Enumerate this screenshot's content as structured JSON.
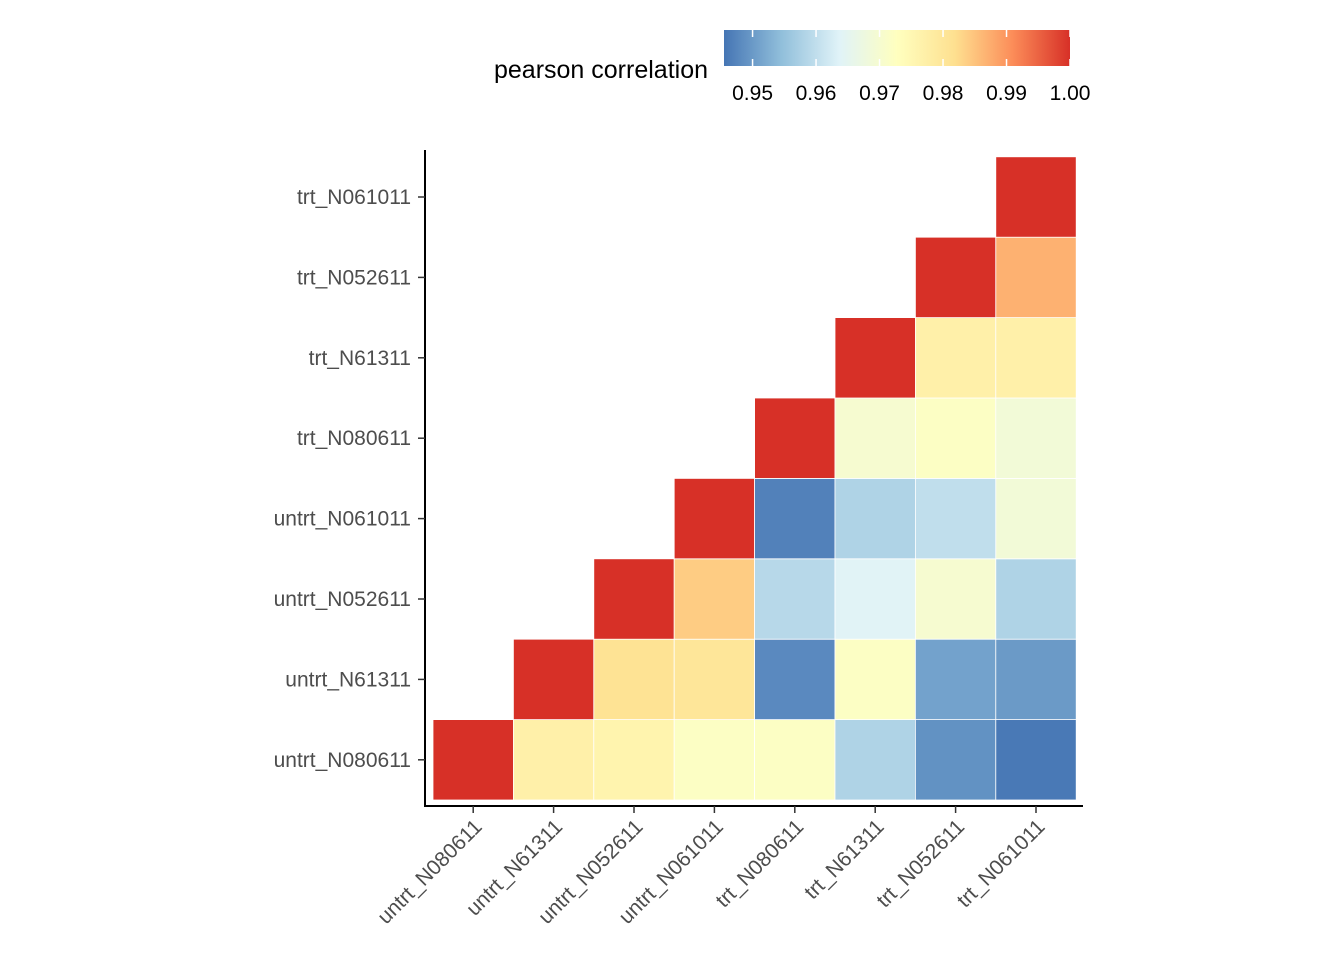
{
  "chart_data": {
    "type": "heatmap",
    "title": "",
    "xlabel": "",
    "ylabel": "",
    "categories": [
      "untrt_N080611",
      "untrt_N61311",
      "untrt_N052611",
      "untrt_N061011",
      "trt_N080611",
      "trt_N61311",
      "trt_N052611",
      "trt_N061011"
    ],
    "triangle": "lower",
    "matrix": [
      [
        1.0,
        null,
        null,
        null,
        null,
        null,
        null,
        null
      ],
      [
        0.977,
        1.0,
        null,
        null,
        null,
        null,
        null,
        null
      ],
      [
        0.976,
        0.981,
        1.0,
        null,
        null,
        null,
        null,
        null
      ],
      [
        0.972,
        0.98,
        0.984,
        1.0,
        null,
        null,
        null,
        null
      ],
      [
        0.972,
        0.948,
        0.959,
        0.947,
        1.0,
        null,
        null,
        null
      ],
      [
        0.958,
        0.972,
        0.964,
        0.958,
        0.97,
        1.0,
        null,
        null
      ],
      [
        0.949,
        0.951,
        0.97,
        0.96,
        0.972,
        0.977,
        1.0,
        null
      ],
      [
        0.946,
        0.95,
        0.958,
        0.969,
        0.969,
        0.977,
        0.987,
        1.0
      ]
    ],
    "legend": {
      "title": "pearson correlation",
      "position": "top",
      "range": [
        0.9455,
        1.0
      ],
      "ticks": [
        "0.95",
        "0.96",
        "0.97",
        "0.98",
        "0.99",
        "1.00"
      ],
      "tick_values": [
        0.95,
        0.96,
        0.97,
        0.98,
        0.99,
        1.0
      ]
    },
    "colorscale": [
      "#4575b4",
      "#91bfdb",
      "#e0f3f8",
      "#ffffbf",
      "#fee090",
      "#fc8d59",
      "#d73027"
    ],
    "grid": false,
    "cell_border_color": "#ffffff",
    "axis_line_color": "#000000",
    "tick_label_color": "#4d4d4d"
  }
}
